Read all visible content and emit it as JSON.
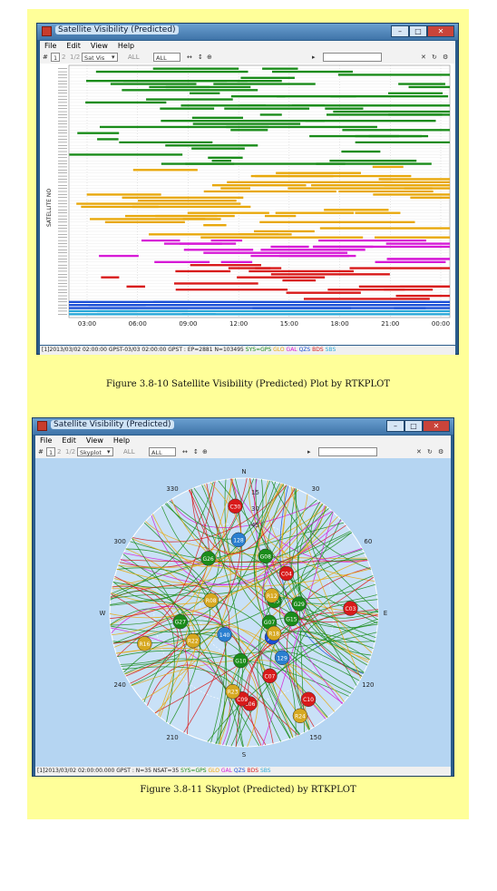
{
  "figure1": {
    "window_title": "Satellite Visibility (Predicted)",
    "menu": [
      "File",
      "Edit",
      "View",
      "Help"
    ],
    "toolbar": {
      "frame_value": "1",
      "frame_alt1": "2",
      "frame_alt2": "1/2",
      "plot_type": "Sat Vis",
      "sat_filter1": "ALL",
      "sat_filter2": "ALL"
    },
    "y_axis_label": "SATELLITE NO",
    "x_ticks": [
      "03:00",
      "06:00",
      "09:00",
      "12:00",
      "15:00",
      "18:00",
      "21:00",
      "00:00"
    ],
    "status": "[1]2013/03/02 02:00:00 GPST-03/03 02:00:00 GPST : EP=2881 N=103495",
    "legend": [
      {
        "label": "SYS=GPS",
        "color": "#1a8c1a"
      },
      {
        "label": "GLO",
        "color": "#e8a80c"
      },
      {
        "label": "GAL",
        "color": "#d61ad6"
      },
      {
        "label": "QZS",
        "color": "#1a4fd6"
      },
      {
        "label": "BDS",
        "color": "#d81a1a"
      },
      {
        "label": "SBS",
        "color": "#2aa8d8"
      }
    ],
    "caption": "Figure 3.8-10   Satellite Visibility (Predicted) Plot by RTKPLOT"
  },
  "figure2": {
    "window_title": "Satellite Visibility (Predicted)",
    "menu": [
      "File",
      "Edit",
      "View",
      "Help"
    ],
    "toolbar": {
      "frame_value": "1",
      "frame_alt1": "2",
      "frame_alt2": "1/2",
      "plot_type": "Skyplot",
      "sat_filter1": "ALL",
      "sat_filter2": "ALL"
    },
    "compass": {
      "north": "N",
      "east": "E",
      "south": "S",
      "west": "W"
    },
    "azimuth_labels": [
      "30",
      "60",
      "120",
      "150",
      "210",
      "240",
      "300",
      "330"
    ],
    "elevation_labels": [
      "15",
      "30",
      "45"
    ],
    "satellites": [
      {
        "id": "G07",
        "color": "#1a8c1a"
      },
      {
        "id": "G08",
        "color": "#1a8c1a"
      },
      {
        "id": "G10",
        "color": "#1a8c1a"
      },
      {
        "id": "G15",
        "color": "#1a8c1a"
      },
      {
        "id": "G26",
        "color": "#1a8c1a"
      },
      {
        "id": "G27",
        "color": "#1a8c1a"
      },
      {
        "id": "G29",
        "color": "#1a8c1a"
      },
      {
        "id": "C05",
        "color": "#1a8c1a"
      },
      {
        "id": "C06",
        "color": "#d81a1a"
      },
      {
        "id": "C09",
        "color": "#d81a1a"
      },
      {
        "id": "C03",
        "color": "#d81a1a"
      },
      {
        "id": "C04",
        "color": "#d81a1a"
      },
      {
        "id": "C07",
        "color": "#d81a1a"
      },
      {
        "id": "C10",
        "color": "#d81a1a"
      },
      {
        "id": "C30",
        "color": "#d81a1a"
      },
      {
        "id": "J01",
        "color": "#1a4fd6"
      },
      {
        "id": "128",
        "color": "#2a7fd0"
      },
      {
        "id": "129",
        "color": "#2a7fd0"
      },
      {
        "id": "140",
        "color": "#2a7fd0"
      },
      {
        "id": "R18",
        "color": "#d6a820"
      },
      {
        "id": "R22",
        "color": "#d6a820"
      },
      {
        "id": "R23",
        "color": "#d6a820"
      },
      {
        "id": "R08",
        "color": "#d6a820"
      },
      {
        "id": "R12",
        "color": "#d6a820"
      },
      {
        "id": "R24",
        "color": "#d6a820"
      },
      {
        "id": "R16",
        "color": "#d6a820"
      }
    ],
    "status": "[1]2013/03/02 02:00:00.000 GPST : N=35 NSAT=35",
    "legend": [
      {
        "label": "SYS=GPS",
        "color": "#1a8c1a"
      },
      {
        "label": "GLO",
        "color": "#e8a80c"
      },
      {
        "label": "GAL",
        "color": "#d61ad6"
      },
      {
        "label": "QZS",
        "color": "#1a4fd6"
      },
      {
        "label": "BDS",
        "color": "#d81a1a"
      },
      {
        "label": "SBS",
        "color": "#2aa8d8"
      }
    ],
    "caption": "Figure 3.8-11   Skyplot (Predicted) by RTKPLOT"
  }
}
